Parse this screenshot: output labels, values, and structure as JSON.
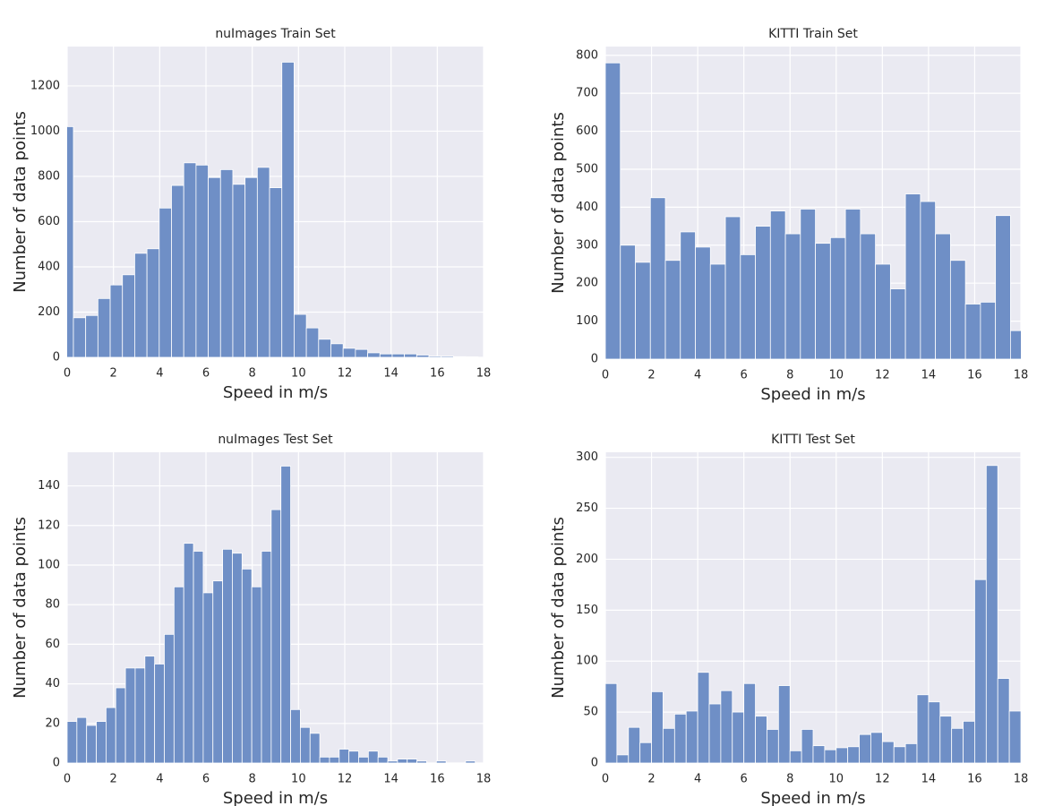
{
  "chart_data": [
    {
      "type": "histogram",
      "title": "nuImages Train Set",
      "xlabel": "Speed in m/s",
      "ylabel": "Number of data points",
      "bins": [
        -0.26,
        0.27,
        0.8,
        1.33,
        1.86,
        2.39,
        2.92,
        3.45,
        3.98,
        4.51,
        5.04,
        5.57,
        6.1,
        6.63,
        7.16,
        7.69,
        8.22,
        8.75,
        9.28,
        9.81,
        10.34,
        10.87,
        11.4,
        11.93,
        12.46,
        12.99,
        13.52,
        14.05,
        14.58,
        15.11,
        15.64,
        16.17,
        16.7,
        17.23,
        17.76,
        18.29
      ],
      "values": [
        1020,
        175,
        185,
        260,
        320,
        365,
        460,
        480,
        660,
        760,
        860,
        850,
        795,
        830,
        765,
        795,
        840,
        750,
        1305,
        190,
        130,
        80,
        60,
        40,
        35,
        20,
        15,
        15,
        15,
        10,
        5,
        5,
        3,
        2,
        0
      ],
      "xlim": [
        0,
        18
      ],
      "xticks": [
        0,
        2,
        4,
        6,
        8,
        10,
        12,
        14,
        16,
        18
      ],
      "ylim": [
        0,
        1374
      ],
      "yticks": [
        0,
        200,
        400,
        600,
        800,
        1000,
        1200
      ],
      "color": "#6f8fc6",
      "grid": true
    },
    {
      "type": "histogram",
      "title": "KITTI Train Set",
      "xlabel": "Speed in m/s",
      "ylabel": "Number of data points",
      "bins": [
        0,
        0.65,
        1.3,
        1.95,
        2.6,
        3.25,
        3.9,
        4.55,
        5.2,
        5.85,
        6.5,
        7.15,
        7.8,
        8.45,
        9.1,
        9.75,
        10.4,
        11.05,
        11.7,
        12.35,
        13,
        13.65,
        14.3,
        14.95,
        15.6,
        16.25,
        16.9,
        17.55,
        18.2
      ],
      "values": [
        780,
        300,
        255,
        425,
        260,
        335,
        295,
        250,
        375,
        275,
        350,
        390,
        330,
        395,
        305,
        320,
        395,
        330,
        250,
        185,
        435,
        415,
        330,
        260,
        145,
        150,
        378,
        75
      ],
      "xlim": [
        0,
        18
      ],
      "xticks": [
        0,
        2,
        4,
        6,
        8,
        10,
        12,
        14,
        16,
        18
      ],
      "ylim": [
        0,
        823
      ],
      "yticks": [
        0,
        100,
        200,
        300,
        400,
        500,
        600,
        700,
        800
      ],
      "color": "#6f8fc6",
      "grid": true
    },
    {
      "type": "histogram",
      "title": "nuImages Test Set",
      "xlabel": "Speed in m/s",
      "ylabel": "Number of data points",
      "bins": [
        0,
        0.42,
        0.84,
        1.26,
        1.68,
        2.1,
        2.52,
        2.94,
        3.36,
        3.78,
        4.2,
        4.62,
        5.04,
        5.46,
        5.88,
        6.3,
        6.72,
        7.14,
        7.56,
        7.98,
        8.4,
        8.82,
        9.24,
        9.66,
        10.08,
        10.5,
        10.92,
        11.34,
        11.76,
        12.18,
        12.6,
        13.02,
        13.44,
        13.86,
        14.28,
        14.7,
        15.12,
        15.54,
        15.96,
        16.38,
        16.8,
        17.22,
        17.64,
        18.06
      ],
      "values": [
        21,
        23,
        19,
        21,
        28,
        38,
        48,
        48,
        54,
        50,
        65,
        89,
        111,
        107,
        86,
        92,
        108,
        106,
        98,
        89,
        107,
        128,
        150,
        27,
        18,
        15,
        3,
        3,
        7,
        6,
        3,
        6,
        3,
        1,
        2,
        2,
        1,
        0,
        1,
        0,
        0,
        1,
        0
      ],
      "xlim": [
        0,
        18
      ],
      "xticks": [
        0,
        2,
        4,
        6,
        8,
        10,
        12,
        14,
        16,
        18
      ],
      "ylim": [
        0,
        157
      ],
      "yticks": [
        0,
        20,
        40,
        60,
        80,
        100,
        120,
        140
      ],
      "color": "#6f8fc6",
      "grid": true
    },
    {
      "type": "histogram",
      "title": "KITTI Test Set",
      "xlabel": "Speed in m/s",
      "ylabel": "Number of data points",
      "bins": [
        0,
        0.5,
        1,
        1.5,
        2,
        2.5,
        3,
        3.5,
        4,
        4.5,
        5,
        5.5,
        6,
        6.5,
        7,
        7.5,
        8,
        8.5,
        9,
        9.5,
        10,
        10.5,
        11,
        11.5,
        12,
        12.5,
        13,
        13.5,
        14,
        14.5,
        15,
        15.5,
        16,
        16.5,
        17,
        17.5,
        18
      ],
      "values": [
        78,
        8,
        35,
        20,
        70,
        34,
        48,
        51,
        89,
        58,
        71,
        50,
        78,
        46,
        33,
        76,
        12,
        33,
        17,
        13,
        15,
        16,
        28,
        30,
        21,
        16,
        19,
        67,
        60,
        46,
        34,
        41,
        180,
        292,
        83,
        51
      ],
      "xlim": [
        0,
        18
      ],
      "xticks": [
        0,
        2,
        4,
        6,
        8,
        10,
        12,
        14,
        16,
        18
      ],
      "ylim": [
        0,
        305
      ],
      "yticks": [
        0,
        50,
        100,
        150,
        200,
        250,
        300
      ],
      "color": "#6f8fc6",
      "grid": true
    }
  ]
}
